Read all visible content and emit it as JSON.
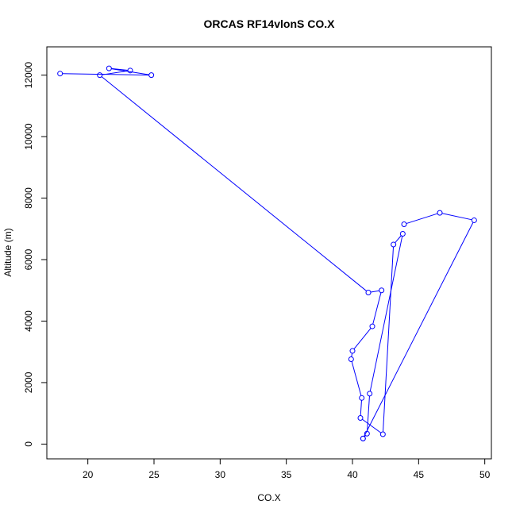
{
  "chart_data": {
    "type": "line",
    "title": "ORCAS RF14vlonS CO.X",
    "xlabel": "CO.X",
    "ylabel": "Altitude (m)",
    "xlim": [
      16.9,
      50.5
    ],
    "ylim": [
      -480,
      12920
    ],
    "xticks": [
      20,
      25,
      30,
      35,
      40,
      45,
      50
    ],
    "yticks": [
      0,
      2000,
      4000,
      6000,
      8000,
      10000,
      12000
    ],
    "grid": false,
    "line_color": "#0000ff",
    "series": [
      {
        "marker": "open-circle",
        "x": [
          17.9,
          24.8,
          21.6,
          23.2,
          20.9,
          41.2,
          42.2,
          41.5,
          40.0,
          39.9,
          40.7,
          40.6,
          42.3,
          43.1,
          43.8,
          41.3,
          41.1,
          40.8,
          40.8,
          49.2,
          46.6,
          43.9
        ],
        "y": [
          12050,
          12000,
          12220,
          12150,
          12000,
          4930,
          5000,
          3830,
          3030,
          2760,
          1500,
          850,
          320,
          6490,
          6840,
          1640,
          340,
          180,
          180,
          7280,
          7520,
          7150
        ]
      }
    ]
  }
}
